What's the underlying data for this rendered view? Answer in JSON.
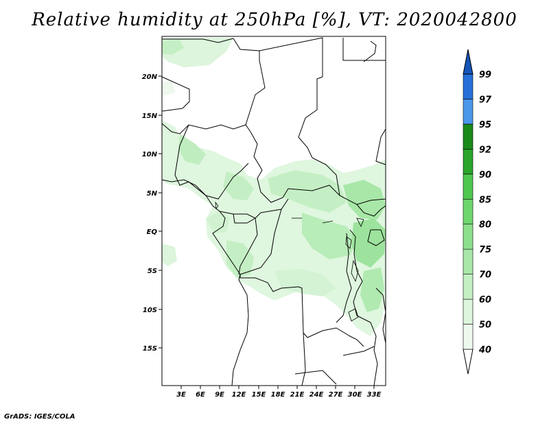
{
  "title": "Relative humidity at 250hPa [%], VT: 2020042800",
  "footer": "GrADS: IGES/COLA",
  "map": {
    "lon_ticks": [
      "3E",
      "6E",
      "9E",
      "12E",
      "15E",
      "18E",
      "21E",
      "24E",
      "27E",
      "30E",
      "33E"
    ],
    "lat_ticks": [
      "20N",
      "15N",
      "10N",
      "5N",
      "EQ",
      "5S",
      "10S",
      "15S"
    ]
  },
  "colorbar": {
    "levels": [
      "40",
      "50",
      "60",
      "70",
      "75",
      "80",
      "85",
      "90",
      "92",
      "95",
      "97",
      "99"
    ],
    "colors": [
      "#ffffff",
      "#eef9ee",
      "#dcf5dc",
      "#c4efc4",
      "#a8e7a8",
      "#8ddf8d",
      "#6fd66f",
      "#4fc74f",
      "#2aa52a",
      "#1a8a1a",
      "#4a96e8",
      "#2670d8",
      "#1655b8"
    ]
  }
}
